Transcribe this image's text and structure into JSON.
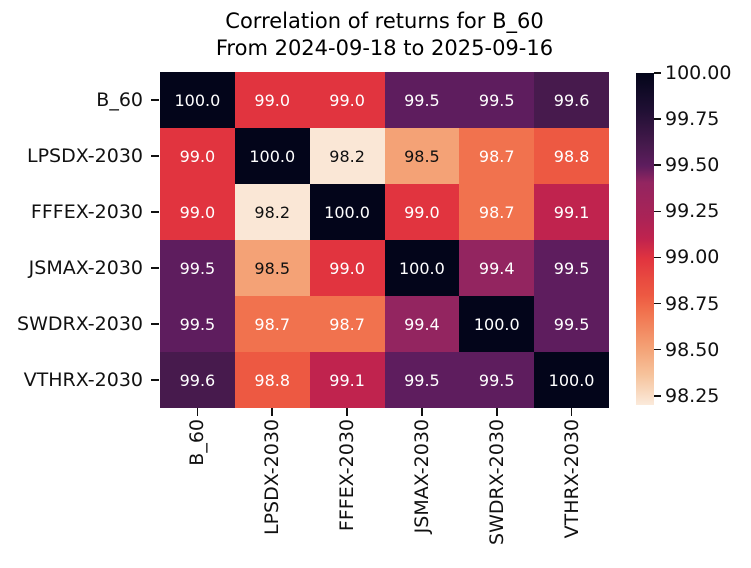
{
  "figure": {
    "background": "#ffffff",
    "title_line1": "Correlation of returns for B_60",
    "title_line2": "From 2024-09-18 to 2025-09-16"
  },
  "chart_data": {
    "type": "heatmap",
    "title": "Correlation of returns for B_60",
    "subtitle": "From 2024-09-18 to 2025-09-16",
    "row_labels": [
      "B_60",
      "LPSDX-2030",
      "FFFEX-2030",
      "JSMAX-2030",
      "SWDRX-2030",
      "VTHRX-2030"
    ],
    "col_labels": [
      "B_60",
      "LPSDX-2030",
      "FFFEX-2030",
      "JSMAX-2030",
      "SWDRX-2030",
      "VTHRX-2030"
    ],
    "matrix": [
      [
        100.0,
        99.0,
        99.0,
        99.5,
        99.5,
        99.6
      ],
      [
        99.0,
        100.0,
        98.2,
        98.5,
        98.7,
        98.8
      ],
      [
        99.0,
        98.2,
        100.0,
        99.0,
        98.7,
        99.1
      ],
      [
        99.5,
        98.5,
        99.0,
        100.0,
        99.4,
        99.5
      ],
      [
        99.5,
        98.7,
        98.7,
        99.4,
        100.0,
        99.5
      ],
      [
        99.6,
        98.8,
        99.1,
        99.5,
        99.5,
        100.0
      ]
    ],
    "vmin": 98.2,
    "vmax": 100.0,
    "colormap": "rocket_r",
    "colorbar_ticks": [
      "100.00",
      "99.75",
      "99.50",
      "99.25",
      "99.00",
      "98.75",
      "98.50",
      "98.25"
    ],
    "palette": {
      "100.0": "#03051a",
      "99.6": "#471a4d",
      "99.5": "#5e1d5e",
      "99.4": "#932560",
      "99.1": "#c0234e",
      "99.0": "#e1343f",
      "98.8": "#ed5942",
      "98.7": "#f1724e",
      "98.5": "#f4a276",
      "98.2": "#fae7d6"
    },
    "dark_text_values": [
      98.2,
      98.5
    ],
    "annotation_light_color": "#ffffff",
    "annotation_dark_color": "#101010",
    "axis_color": "#111111",
    "gradient_stops": [
      {
        "pos": 0,
        "color": "#03051a"
      },
      {
        "pos": 11,
        "color": "#1f0f33"
      },
      {
        "pos": 22,
        "color": "#471a4d"
      },
      {
        "pos": 28,
        "color": "#5e1d5e"
      },
      {
        "pos": 33,
        "color": "#932560"
      },
      {
        "pos": 44,
        "color": "#ab2356"
      },
      {
        "pos": 50,
        "color": "#c0234e"
      },
      {
        "pos": 56,
        "color": "#e1343f"
      },
      {
        "pos": 62,
        "color": "#e84a40"
      },
      {
        "pos": 67,
        "color": "#ed5942"
      },
      {
        "pos": 72,
        "color": "#f1724e"
      },
      {
        "pos": 83,
        "color": "#f4a276"
      },
      {
        "pos": 91,
        "color": "#f6c39c"
      },
      {
        "pos": 100,
        "color": "#fbeadb"
      }
    ]
  }
}
